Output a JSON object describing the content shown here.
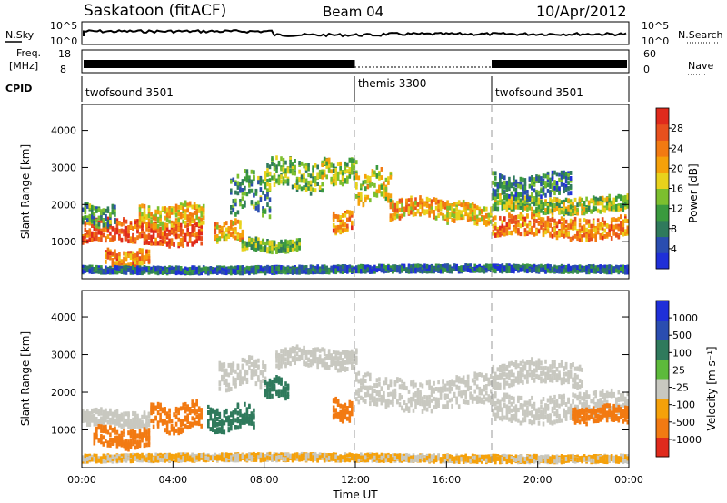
{
  "header": {
    "title": "Saskatoon (fitACF)",
    "beam": "Beam 04",
    "date": "10/Apr/2012"
  },
  "nsky_panel": {
    "left_label": "N.Sky",
    "right_label": "N.Search",
    "left_ticks": [
      "10^5",
      "10^0"
    ],
    "right_ticks": [
      "10^5",
      "10^0"
    ]
  },
  "freq_panel": {
    "left_label_1": "Freq.",
    "left_label_2": "[MHz]",
    "right_label": "Nave",
    "left_ticks": [
      "18",
      "8"
    ],
    "right_ticks": [
      "60",
      "0"
    ]
  },
  "cpid_panel": {
    "label": "CPID",
    "programs": [
      {
        "name": "twofsound 3501",
        "start_hour": 0,
        "end_hour": 12
      },
      {
        "name": "themis 3300",
        "start_hour": 12,
        "end_hour": 18
      },
      {
        "name": "twofsound 3501",
        "start_hour": 18,
        "end_hour": 24
      }
    ]
  },
  "power_colorbar": {
    "label": "Power [dB]",
    "ticks": [
      "28",
      "24",
      "20",
      "16",
      "12",
      "8",
      "4"
    ],
    "colors": [
      "#1f2fd8",
      "#2a4db0",
      "#2f7a5c",
      "#3a9a3e",
      "#7cbf2e",
      "#e8d21c",
      "#f5a10a",
      "#f27a12",
      "#e8501e",
      "#e02a1c"
    ]
  },
  "velocity_colorbar": {
    "label": "Velocity [m s⁻¹]",
    "ticks": [
      "1000",
      "500",
      "100",
      "25",
      "-25",
      "-100",
      "-500",
      "-1000"
    ],
    "colors": [
      "#1f2fd8",
      "#2a4db0",
      "#2f7a5c",
      "#5dba3b",
      "#c8c8c0",
      "#f5a10a",
      "#f27a12",
      "#e02a1c"
    ]
  },
  "chart_data": [
    {
      "type": "heatmap",
      "name": "power",
      "ylabel": "Slant Range [km]",
      "xlabel": "",
      "x_range_hours": [
        0,
        24
      ],
      "ylim": [
        0,
        4700
      ],
      "yticks": [
        1000,
        2000,
        3000,
        4000
      ],
      "program_change_hours": [
        12,
        18
      ],
      "bands": [
        {
          "t0": 0,
          "t1": 5.2,
          "r_center": 1250,
          "r_halfwidth": 300,
          "value": 26
        },
        {
          "t0": 0,
          "t1": 1.5,
          "r_center": 1700,
          "r_halfwidth": 250,
          "value": 10
        },
        {
          "t0": 1.0,
          "t1": 3.0,
          "r_center": 550,
          "r_halfwidth": 200,
          "value": 22
        },
        {
          "t0": 2.5,
          "t1": 5.3,
          "r_center": 1700,
          "r_halfwidth": 280,
          "value": 18
        },
        {
          "t0": 5.8,
          "t1": 7.0,
          "r_center": 1300,
          "r_halfwidth": 250,
          "value": 20
        },
        {
          "t0": 6.5,
          "t1": 8.2,
          "r_center": 2300,
          "r_halfwidth": 500,
          "value": 10
        },
        {
          "t0": 8.0,
          "t1": 10.5,
          "r_center": 2800,
          "r_halfwidth": 400,
          "value": 12
        },
        {
          "t0": 7.0,
          "t1": 9.5,
          "r_center": 900,
          "r_halfwidth": 150,
          "value": 12
        },
        {
          "t0": 10.5,
          "t1": 12.0,
          "r_center": 2900,
          "r_halfwidth": 300,
          "value": 14
        },
        {
          "t0": 11.0,
          "t1": 11.8,
          "r_center": 1500,
          "r_halfwidth": 250,
          "value": 22
        },
        {
          "t0": 12.0,
          "t1": 13.5,
          "r_center": 2500,
          "r_halfwidth": 400,
          "value": 16
        },
        {
          "t0": 13.5,
          "t1": 16.0,
          "r_center": 1900,
          "r_halfwidth": 250,
          "value": 20
        },
        {
          "t0": 16.0,
          "t1": 18.0,
          "r_center": 1750,
          "r_halfwidth": 250,
          "value": 18
        },
        {
          "t0": 18.0,
          "t1": 24.0,
          "r_center": 1400,
          "r_halfwidth": 280,
          "value": 22
        },
        {
          "t0": 18.0,
          "t1": 24.0,
          "r_center": 2000,
          "r_halfwidth": 200,
          "value": 14
        },
        {
          "t0": 18.0,
          "t1": 21.5,
          "r_center": 2500,
          "r_halfwidth": 300,
          "value": 8
        },
        {
          "t0": 0,
          "t1": 24,
          "r_center": 250,
          "r_halfwidth": 80,
          "value": 6
        }
      ]
    },
    {
      "type": "heatmap",
      "name": "velocity",
      "ylabel": "Slant Range [km]",
      "xlabel": "Time UT",
      "x_range_hours": [
        0,
        24
      ],
      "xticks": [
        "00:00",
        "04:00",
        "08:00",
        "12:00",
        "16:00",
        "20:00",
        "00:00"
      ],
      "ylim": [
        0,
        4700
      ],
      "yticks": [
        1000,
        2000,
        3000,
        4000
      ],
      "program_change_hours": [
        12,
        18
      ],
      "bands": [
        {
          "t0": 0,
          "t1": 3.0,
          "r_center": 1300,
          "r_halfwidth": 200,
          "value": 0
        },
        {
          "t0": 0.5,
          "t1": 3.0,
          "r_center": 800,
          "r_halfwidth": 250,
          "value": -150
        },
        {
          "t0": 3.0,
          "t1": 5.2,
          "r_center": 1350,
          "r_halfwidth": 350,
          "value": -200
        },
        {
          "t0": 5.5,
          "t1": 7.5,
          "r_center": 1300,
          "r_halfwidth": 300,
          "value": 300
        },
        {
          "t0": 6.0,
          "t1": 8.0,
          "r_center": 2500,
          "r_halfwidth": 350,
          "value": 0
        },
        {
          "t0": 8.0,
          "t1": 9.0,
          "r_center": 2100,
          "r_halfwidth": 250,
          "value": 300
        },
        {
          "t0": 8.5,
          "t1": 12.0,
          "r_center": 2900,
          "r_halfwidth": 250,
          "value": 0
        },
        {
          "t0": 11.0,
          "t1": 11.8,
          "r_center": 1500,
          "r_halfwidth": 250,
          "value": -300
        },
        {
          "t0": 12.0,
          "t1": 18.0,
          "r_center": 2000,
          "r_halfwidth": 400,
          "value": 0
        },
        {
          "t0": 18.0,
          "t1": 24.0,
          "r_center": 1600,
          "r_halfwidth": 350,
          "value": 0
        },
        {
          "t0": 21.5,
          "t1": 24.0,
          "r_center": 1400,
          "r_halfwidth": 200,
          "value": -150
        },
        {
          "t0": 18.0,
          "t1": 22.0,
          "r_center": 2500,
          "r_halfwidth": 300,
          "value": 0
        },
        {
          "t0": 0,
          "t1": 24,
          "r_center": 250,
          "r_halfwidth": 80,
          "value": -30
        }
      ]
    }
  ]
}
